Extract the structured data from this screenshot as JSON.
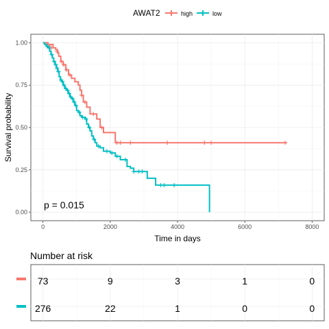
{
  "chart_data": {
    "type": "line",
    "xlabel": "Time in days",
    "ylabel": "Survival probability",
    "xlim": [
      0,
      8000
    ],
    "ylim": [
      0,
      1
    ],
    "xticks": [
      0,
      2000,
      4000,
      6000,
      8000
    ],
    "yticks": [
      0,
      0.25,
      0.5,
      0.75,
      1
    ],
    "ytick_labels": [
      "0.00",
      "0.25",
      "0.50",
      "0.75",
      "1.00"
    ],
    "grid": true,
    "legend": {
      "title": "AWAT2",
      "placement": "top",
      "entries": [
        {
          "label": "high",
          "color": "#F8766D"
        },
        {
          "label": "low",
          "color": "#00BFC4"
        }
      ]
    },
    "annotation": "p = 0.015",
    "series": [
      {
        "name": "high",
        "color": "#F8766D",
        "steps": [
          [
            0,
            1.0
          ],
          [
            150,
            0.99
          ],
          [
            300,
            0.97
          ],
          [
            380,
            0.96
          ],
          [
            430,
            0.94
          ],
          [
            470,
            0.92
          ],
          [
            530,
            0.89
          ],
          [
            600,
            0.87
          ],
          [
            680,
            0.84
          ],
          [
            760,
            0.81
          ],
          [
            850,
            0.79
          ],
          [
            950,
            0.77
          ],
          [
            1050,
            0.75
          ],
          [
            1100,
            0.72
          ],
          [
            1150,
            0.69
          ],
          [
            1200,
            0.65
          ],
          [
            1300,
            0.62
          ],
          [
            1400,
            0.58
          ],
          [
            1600,
            0.55
          ],
          [
            1700,
            0.5
          ],
          [
            1800,
            0.47
          ],
          [
            2150,
            0.41
          ],
          [
            7250,
            0.41
          ]
        ],
        "censors": [
          [
            100,
            0.99
          ],
          [
            200,
            0.98
          ],
          [
            250,
            0.97
          ],
          [
            420,
            0.95
          ],
          [
            550,
            0.89
          ],
          [
            620,
            0.87
          ],
          [
            700,
            0.84
          ],
          [
            800,
            0.81
          ],
          [
            1150,
            0.69
          ],
          [
            1250,
            0.65
          ],
          [
            1500,
            0.58
          ],
          [
            1750,
            0.5
          ],
          [
            2200,
            0.41
          ],
          [
            2300,
            0.41
          ],
          [
            2600,
            0.41
          ],
          [
            3700,
            0.41
          ],
          [
            4800,
            0.41
          ],
          [
            5000,
            0.41
          ],
          [
            7200,
            0.41
          ]
        ]
      },
      {
        "name": "low",
        "color": "#00BFC4",
        "steps": [
          [
            0,
            1.0
          ],
          [
            50,
            0.99
          ],
          [
            100,
            0.98
          ],
          [
            150,
            0.97
          ],
          [
            200,
            0.95
          ],
          [
            240,
            0.93
          ],
          [
            280,
            0.91
          ],
          [
            320,
            0.89
          ],
          [
            360,
            0.87
          ],
          [
            400,
            0.85
          ],
          [
            440,
            0.83
          ],
          [
            480,
            0.8
          ],
          [
            520,
            0.78
          ],
          [
            560,
            0.77
          ],
          [
            600,
            0.75
          ],
          [
            650,
            0.73
          ],
          [
            700,
            0.72
          ],
          [
            750,
            0.7
          ],
          [
            800,
            0.68
          ],
          [
            850,
            0.67
          ],
          [
            900,
            0.65
          ],
          [
            950,
            0.63
          ],
          [
            1000,
            0.6
          ],
          [
            1050,
            0.59
          ],
          [
            1100,
            0.57
          ],
          [
            1150,
            0.56
          ],
          [
            1250,
            0.55
          ],
          [
            1300,
            0.52
          ],
          [
            1350,
            0.5
          ],
          [
            1400,
            0.48
          ],
          [
            1450,
            0.45
          ],
          [
            1500,
            0.43
          ],
          [
            1550,
            0.41
          ],
          [
            1600,
            0.39
          ],
          [
            1700,
            0.38
          ],
          [
            1800,
            0.36
          ],
          [
            2000,
            0.35
          ],
          [
            2150,
            0.33
          ],
          [
            2300,
            0.31
          ],
          [
            2500,
            0.27
          ],
          [
            2600,
            0.26
          ],
          [
            2700,
            0.24
          ],
          [
            3000,
            0.24
          ],
          [
            3100,
            0.2
          ],
          [
            3350,
            0.16
          ],
          [
            4950,
            0.16
          ],
          [
            4950,
            0.0
          ]
        ],
        "censors": [
          [
            120,
            0.98
          ],
          [
            180,
            0.97
          ],
          [
            260,
            0.93
          ],
          [
            330,
            0.89
          ],
          [
            380,
            0.87
          ],
          [
            420,
            0.85
          ],
          [
            460,
            0.83
          ],
          [
            540,
            0.78
          ],
          [
            580,
            0.77
          ],
          [
            620,
            0.75
          ],
          [
            680,
            0.73
          ],
          [
            730,
            0.72
          ],
          [
            780,
            0.7
          ],
          [
            830,
            0.68
          ],
          [
            880,
            0.67
          ],
          [
            930,
            0.65
          ],
          [
            980,
            0.63
          ],
          [
            1080,
            0.59
          ],
          [
            1180,
            0.56
          ],
          [
            1280,
            0.55
          ],
          [
            1380,
            0.5
          ],
          [
            1520,
            0.43
          ],
          [
            1650,
            0.39
          ],
          [
            1900,
            0.36
          ],
          [
            2050,
            0.35
          ],
          [
            2200,
            0.33
          ],
          [
            2450,
            0.31
          ],
          [
            2700,
            0.24
          ],
          [
            2850,
            0.24
          ],
          [
            2950,
            0.24
          ],
          [
            3500,
            0.16
          ],
          [
            3600,
            0.16
          ],
          [
            3900,
            0.16
          ]
        ]
      }
    ]
  },
  "risk_table": {
    "title": "Number at risk",
    "rows": [
      {
        "color": "#F8766D",
        "values": [
          "73",
          "9",
          "3",
          "1",
          "0"
        ]
      },
      {
        "color": "#00BFC4",
        "values": [
          "276",
          "22",
          "1",
          "0",
          "0"
        ]
      }
    ]
  }
}
